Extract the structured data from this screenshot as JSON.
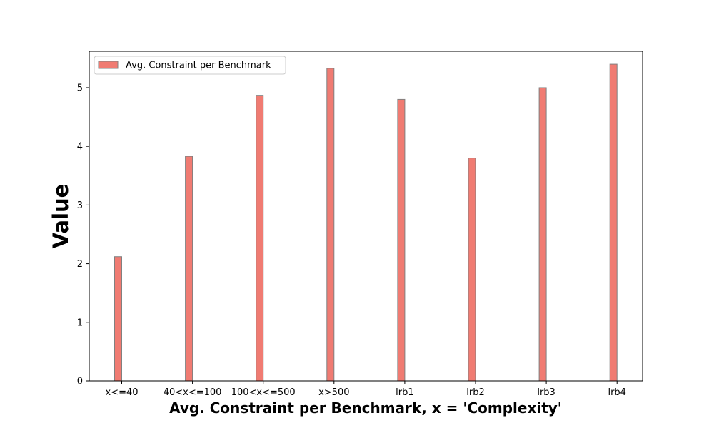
{
  "chart_data": {
    "type": "bar",
    "categories": [
      "x<=40",
      "40<x<=100",
      "100<x<=500",
      "x>500",
      "lrb1",
      "lrb2",
      "lrb3",
      "lrb4"
    ],
    "series": [
      {
        "name": "Avg. Constraint per Benchmark",
        "values": [
          2.12,
          3.83,
          4.87,
          5.33,
          4.8,
          3.8,
          5.0,
          5.4
        ]
      }
    ],
    "xlabel": "Avg. Constraint per Benchmark, x = 'Complexity'",
    "ylabel": "Value",
    "ylim": [
      0,
      5.62
    ],
    "yticks": [
      0,
      1,
      2,
      3,
      4,
      5
    ],
    "grid": false,
    "legend_position": "top-left",
    "colors": {
      "bar_fill": "#f07b72",
      "bar_edge": "#808080",
      "axes": "#000000"
    }
  }
}
